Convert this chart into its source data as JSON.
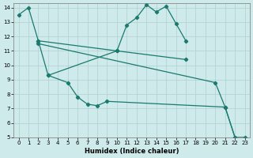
{
  "xlabel": "Humidex (Indice chaleur)",
  "bg_color": "#ceeaea",
  "grid_color": "#b0d0d0",
  "line_color": "#1a7a6e",
  "xlim": [
    -0.5,
    23.5
  ],
  "ylim": [
    5,
    14.3
  ],
  "yticks": [
    5,
    6,
    7,
    8,
    9,
    10,
    11,
    12,
    13,
    14
  ],
  "xticks": [
    0,
    1,
    2,
    3,
    4,
    5,
    6,
    7,
    8,
    9,
    10,
    11,
    12,
    13,
    14,
    15,
    16,
    17,
    18,
    19,
    20,
    21,
    22,
    23
  ],
  "xlabel_fontsize": 6,
  "tick_fontsize": 5,
  "line1": {
    "segments": [
      {
        "x": [
          0,
          1,
          2,
          3
        ],
        "y": [
          13.5,
          14.0,
          11.7,
          9.3
        ]
      },
      {
        "x": [
          10,
          11,
          12,
          13,
          14,
          15,
          16,
          17
        ],
        "y": [
          11.0,
          12.8,
          13.3,
          14.2,
          13.7,
          14.1,
          12.9,
          11.7
        ]
      }
    ]
  },
  "line2": {
    "x": [
      2,
      10,
      17
    ],
    "y": [
      11.7,
      11.0,
      10.4
    ]
  },
  "line3": {
    "x": [
      2,
      20,
      21,
      22
    ],
    "y": [
      11.5,
      8.8,
      7.1,
      5.0
    ]
  },
  "line4": {
    "segments": [
      {
        "x": [
          3,
          5,
          6,
          7,
          8,
          9
        ],
        "y": [
          9.3,
          8.8,
          7.8,
          7.3,
          7.2,
          7.5
        ]
      },
      {
        "x": [
          21,
          22,
          23
        ],
        "y": [
          7.1,
          5.0,
          5.0
        ]
      }
    ]
  }
}
